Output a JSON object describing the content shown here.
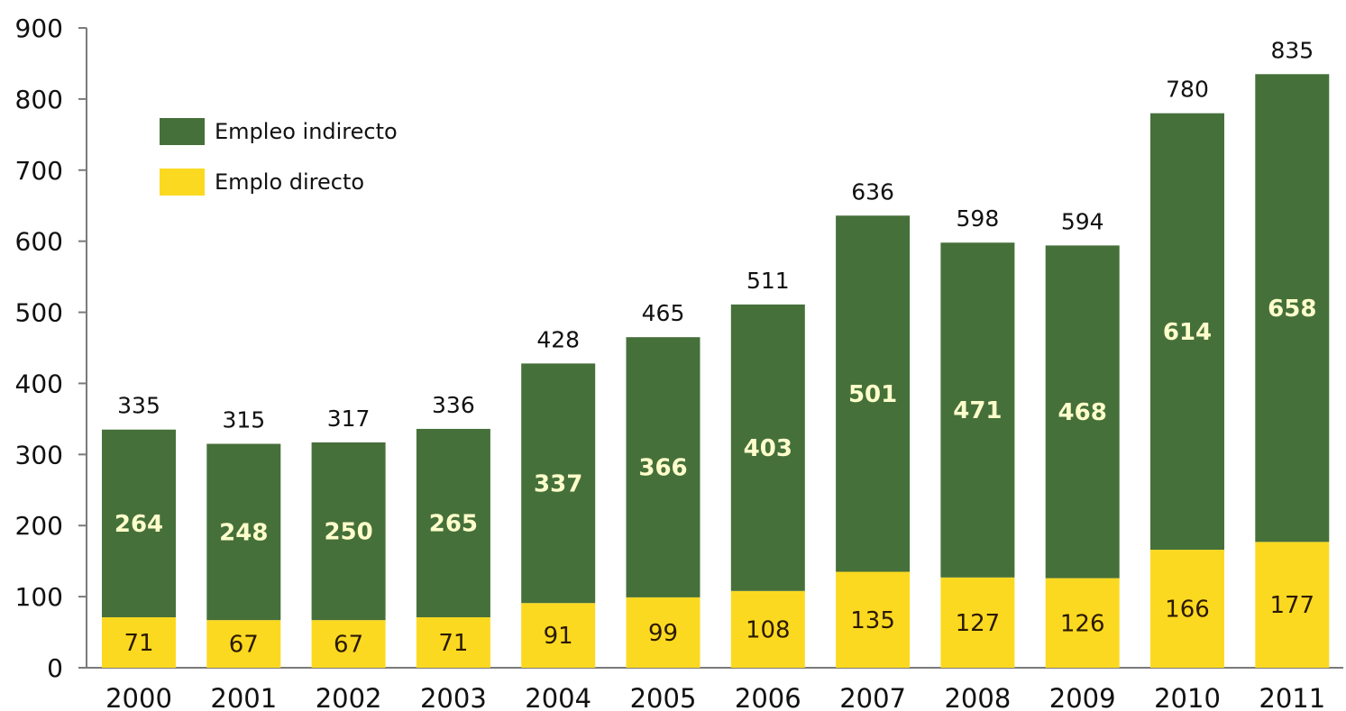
{
  "chart_data": {
    "type": "bar",
    "stacked": true,
    "categories": [
      "2000",
      "2001",
      "2002",
      "2003",
      "2004",
      "2005",
      "2006",
      "2007",
      "2008",
      "2009",
      "2010",
      "2011"
    ],
    "series": [
      {
        "name": "Emplo directo",
        "color": "#fcd921",
        "values": [
          71,
          67,
          67,
          71,
          91,
          99,
          108,
          135,
          127,
          126,
          166,
          177
        ]
      },
      {
        "name": "Empleo indirecto",
        "color": "#46703a",
        "values": [
          264,
          248,
          250,
          265,
          337,
          366,
          403,
          501,
          471,
          468,
          614,
          658
        ]
      }
    ],
    "totals": [
      335,
      315,
      317,
      336,
      428,
      465,
      511,
      636,
      598,
      594,
      780,
      835
    ],
    "yticks": [
      0,
      100,
      200,
      300,
      400,
      500,
      600,
      700,
      800,
      900
    ],
    "ylim": [
      0,
      900
    ],
    "grid": false,
    "legend": {
      "position": "top-left",
      "entries": [
        "Empleo indirecto",
        "Emplo directo"
      ]
    },
    "title": "",
    "xlabel": "",
    "ylabel": ""
  }
}
